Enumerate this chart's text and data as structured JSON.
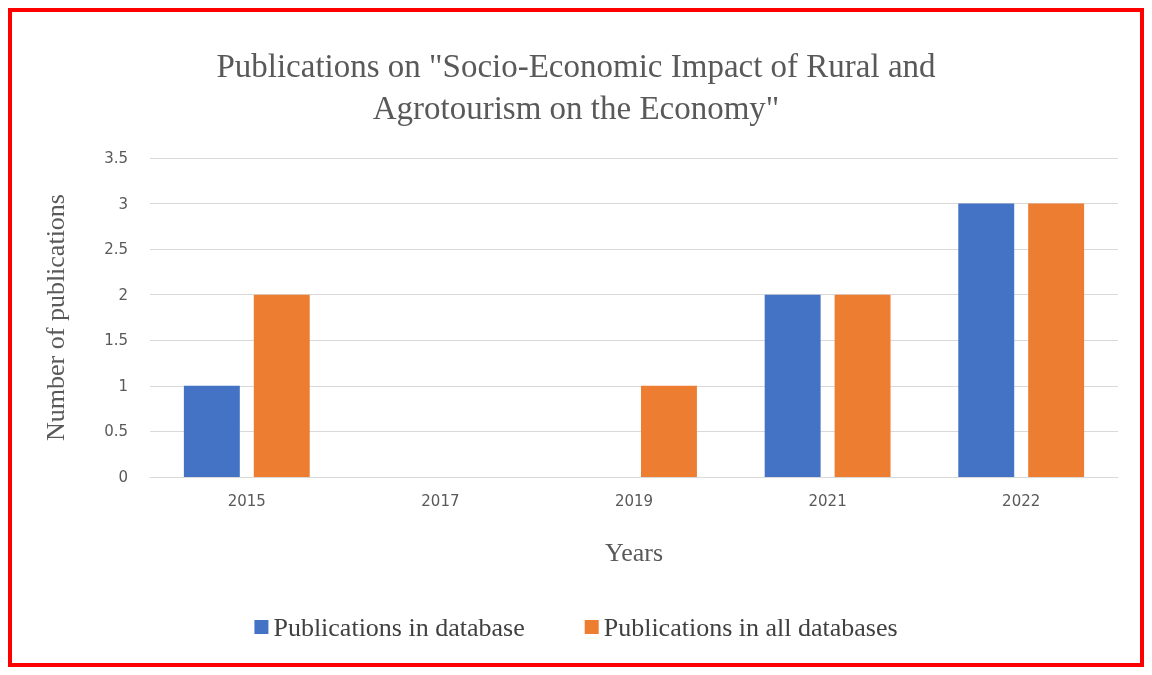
{
  "chart_data": {
    "type": "bar",
    "title": "Publications on \"Socio-Economic Impact of Rural and\nAgrotourism on the Economy\"",
    "xlabel": "Years",
    "ylabel": "Number of publications",
    "categories": [
      "2015",
      "2017",
      "2019",
      "2021",
      "2022"
    ],
    "series": [
      {
        "name": "Publications in database",
        "color": "#4472c4",
        "values": [
          1,
          0,
          0,
          2,
          3
        ]
      },
      {
        "name": "Publications in all databases",
        "color": "#ed7d31",
        "values": [
          2,
          0,
          1,
          2,
          3
        ]
      }
    ],
    "ylim": [
      0,
      3.5
    ],
    "yticks": [
      0,
      0.5,
      1,
      1.5,
      2,
      2.5,
      3,
      3.5
    ],
    "grid": "y",
    "legend": "bottom"
  }
}
